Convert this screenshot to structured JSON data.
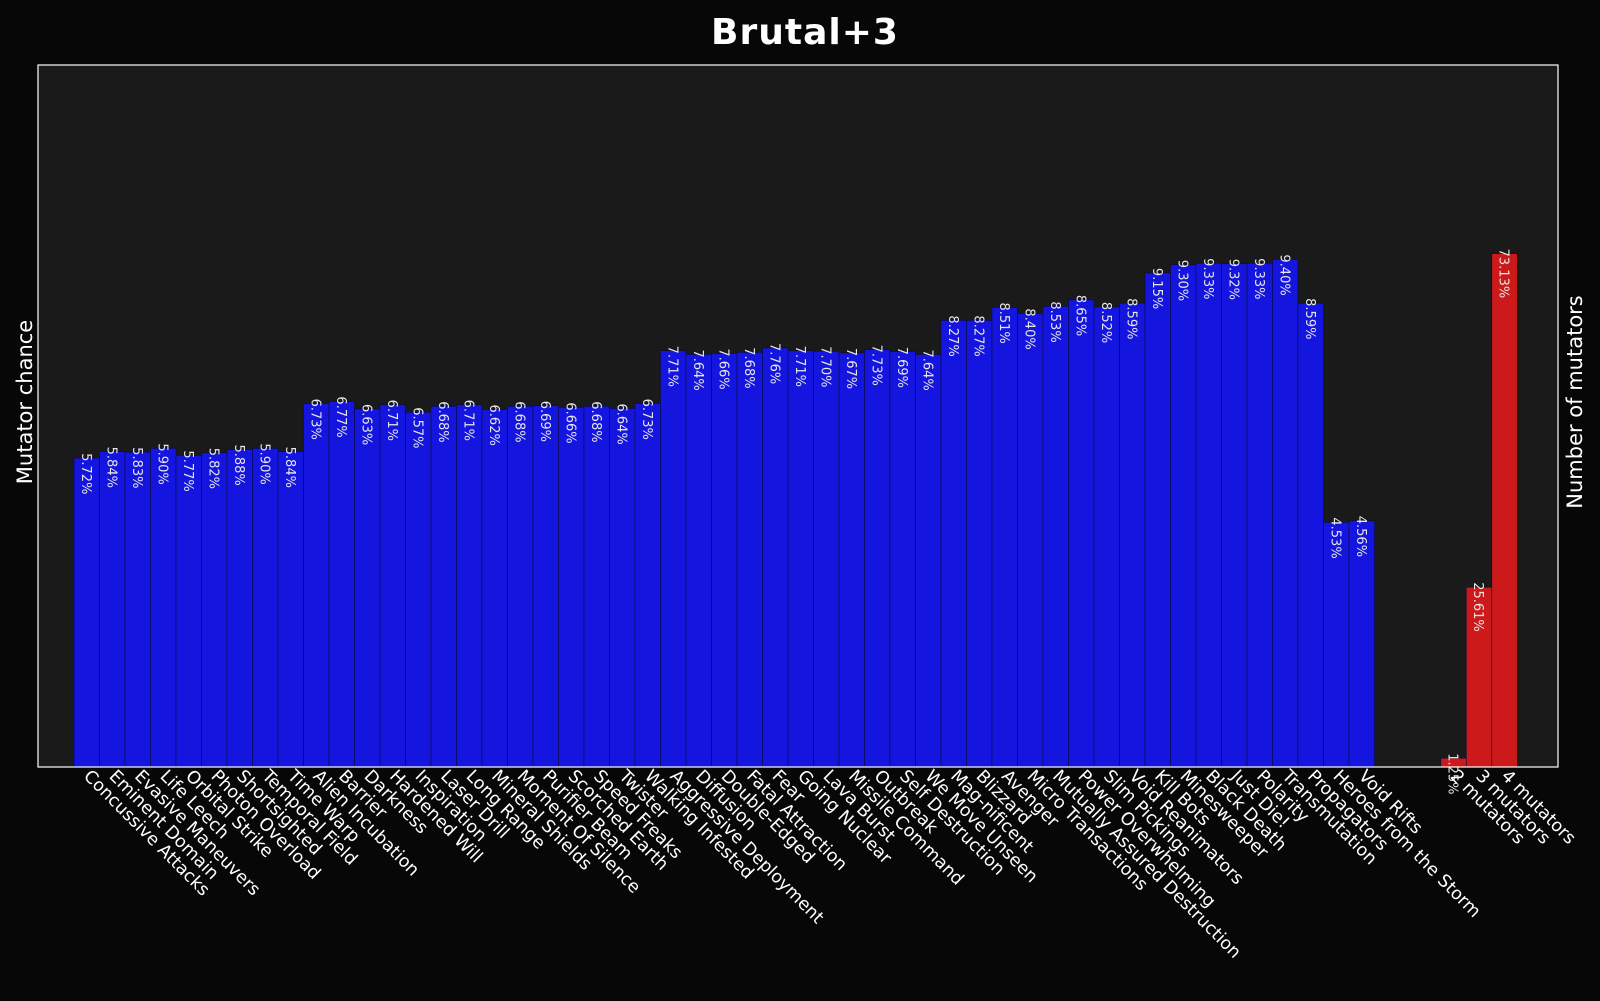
{
  "chart_data": {
    "type": "bar",
    "title": "Brutal+3",
    "ylabel": "Mutator chance",
    "ylabel_right": "Number of mutators",
    "ylim": [
      0,
      13
    ],
    "ylim_right": [
      0,
      100
    ],
    "grid": false,
    "background": "#1a1a1a",
    "page_background": "#070707",
    "series": [
      {
        "color": "#1515e0",
        "axis": "left",
        "categories": [
          "Concussive Attacks",
          "Eminent Domain",
          "Evasive Maneuvers",
          "Life Leech",
          "Orbital Strike",
          "Photon Overload",
          "Shortsighted",
          "Temporal Field",
          "Time Warp",
          "Alien Incubation",
          "Barrier",
          "Darkness",
          "Hardened Will",
          "Inspiration",
          "Laser Drill",
          "Long Range",
          "Mineral Shields",
          "Moment Of Silence",
          "Purifier Beam",
          "Scorched Earth",
          "Speed Freaks",
          "Twister",
          "Walking Infested",
          "Aggressive Deployment",
          "Diffusion",
          "Double-Edged",
          "Fatal Attraction",
          "Fear",
          "Going Nuclear",
          "Lava Burst",
          "Missile Command",
          "Outbreak",
          "Self Destruction",
          "We Move Unseen",
          "Mag-nificent",
          "Blizzard",
          "Avenger",
          "Micro Transactions",
          "Mutually Assured Destruction",
          "Power Overwhelming",
          "Slim Pickings",
          "Void Reanimators",
          "Kill Bots",
          "Minesweeper",
          "Black Death",
          "Just Die!",
          "Polarity",
          "Transmutation",
          "Propagators",
          "Heroes from the Storm",
          "Void Rifts"
        ],
        "values": [
          5.72,
          5.84,
          5.83,
          5.9,
          5.77,
          5.82,
          5.88,
          5.9,
          5.84,
          6.73,
          6.77,
          6.63,
          6.71,
          6.57,
          6.68,
          6.71,
          6.62,
          6.68,
          6.69,
          6.66,
          6.68,
          6.64,
          6.73,
          7.71,
          7.64,
          7.66,
          7.68,
          7.76,
          7.71,
          7.7,
          7.67,
          7.73,
          7.69,
          7.64,
          8.27,
          8.27,
          8.51,
          8.4,
          8.53,
          8.65,
          8.52,
          8.59,
          9.15,
          9.3,
          9.33,
          9.32,
          9.33,
          9.4,
          8.59,
          4.53,
          4.56
        ],
        "labels": [
          "5.72%",
          "5.84%",
          "5.83%",
          "5.90%",
          "5.77%",
          "5.82%",
          "5.88%",
          "5.90%",
          "5.84%",
          "6.73%",
          "6.77%",
          "6.63%",
          "6.71%",
          "6.57%",
          "6.68%",
          "6.71%",
          "6.62%",
          "6.68%",
          "6.69%",
          "6.66%",
          "6.68%",
          "6.64%",
          "6.73%",
          "7.71%",
          "7.64%",
          "7.66%",
          "7.68%",
          "7.76%",
          "7.71%",
          "7.70%",
          "7.67%",
          "7.73%",
          "7.69%",
          "7.64%",
          "8.27%",
          "8.27%",
          "8.51%",
          "8.40%",
          "8.53%",
          "8.65%",
          "8.52%",
          "8.59%",
          "9.15%",
          "9.30%",
          "9.33%",
          "9.32%",
          "9.33%",
          "9.40%",
          "8.59%",
          "4.53%",
          "4.56%"
        ]
      },
      {
        "color": "#cc1a1a",
        "axis": "right",
        "categories": [
          "2 mutators",
          "3 mutators",
          "4 mutators"
        ],
        "values": [
          1.25,
          25.61,
          73.13
        ],
        "labels": [
          "1.25%",
          "25.61%",
          "73.13%"
        ]
      }
    ]
  }
}
